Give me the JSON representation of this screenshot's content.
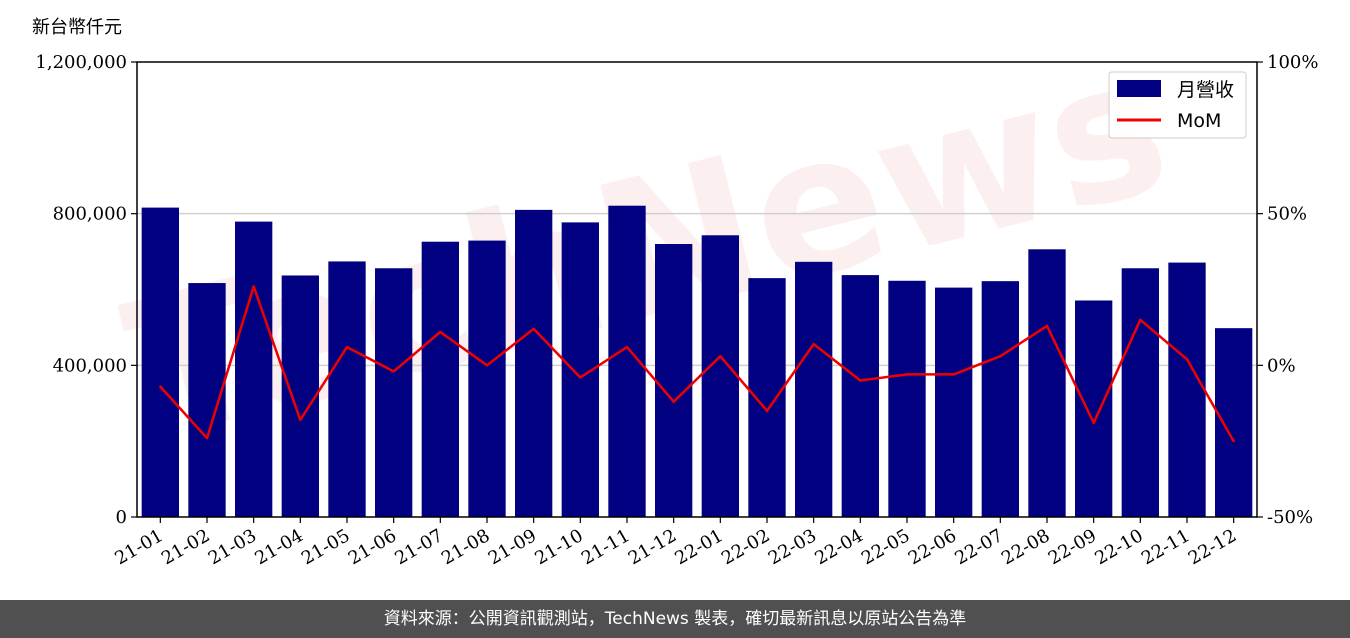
{
  "chart_data": {
    "type": "bar+line",
    "unit_label": "新台幣仟元",
    "categories": [
      "21-01",
      "21-02",
      "21-03",
      "21-04",
      "21-05",
      "21-06",
      "21-07",
      "21-08",
      "21-09",
      "21-10",
      "21-11",
      "21-12",
      "22-01",
      "22-02",
      "22-03",
      "22-04",
      "22-05",
      "22-06",
      "22-07",
      "22-08",
      "22-09",
      "22-10",
      "22-11",
      "22-12"
    ],
    "series": [
      {
        "name": "月營收",
        "type": "bar",
        "axis": "left",
        "color": "#000080",
        "values": [
          816000,
          617000,
          779000,
          637000,
          674000,
          656000,
          726000,
          729000,
          810000,
          777000,
          821000,
          720000,
          743000,
          630000,
          673000,
          638000,
          623000,
          605000,
          622000,
          706000,
          571000,
          656000,
          671000,
          498000
        ]
      },
      {
        "name": "MoM",
        "type": "line",
        "axis": "right",
        "color": "#ee0000",
        "values": [
          -7,
          -24,
          26,
          -18,
          6,
          -2,
          11,
          0,
          12,
          -4,
          6,
          -12,
          3,
          -15,
          7,
          -5,
          -3,
          -3,
          3,
          13,
          -19,
          15,
          2,
          -25
        ]
      }
    ],
    "y_left": {
      "min": 0,
      "max": 1200000,
      "ticks": [
        "0",
        "400,000",
        "800,000",
        "1,200,000"
      ],
      "tick_values": [
        0,
        400000,
        800000,
        1200000
      ]
    },
    "y_right": {
      "min": -50,
      "max": 100,
      "ticks": [
        "-50%",
        "0%",
        "50%",
        "100%"
      ],
      "tick_values": [
        -50,
        0,
        50,
        100
      ]
    },
    "grid": "horizontal",
    "legend_position": "top-right"
  },
  "watermark_text": "TechNews",
  "footer_text": "資料來源：公開資訊觀測站，TechNews 製表，確切最新訊息以原站公告為準"
}
